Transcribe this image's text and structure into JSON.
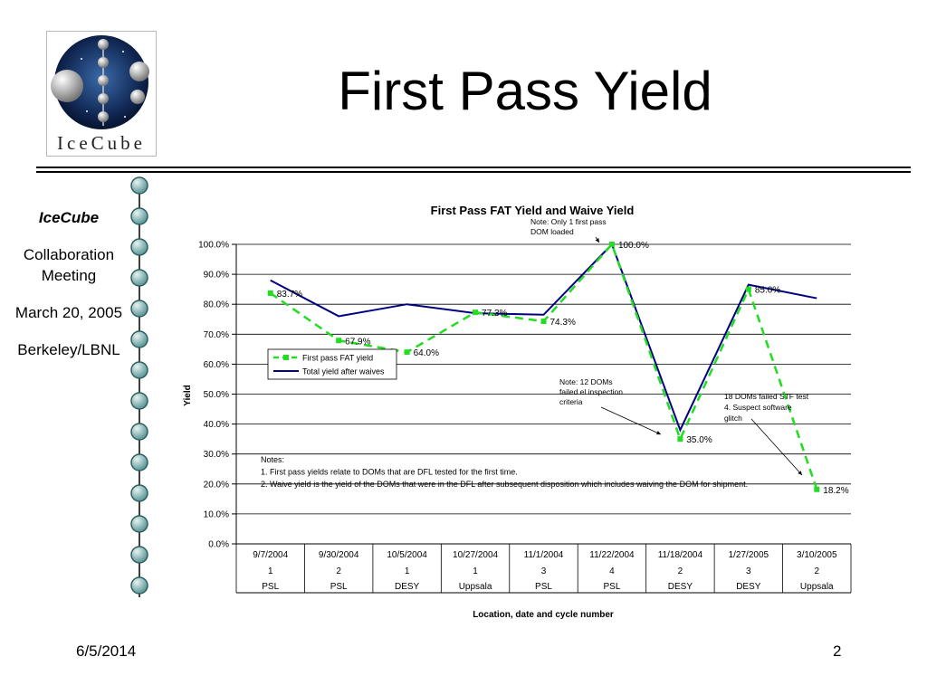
{
  "slide": {
    "title": "First Pass Yield",
    "logo_text": "IceCube",
    "sidebar": {
      "org": "IceCube",
      "event": "Collaboration Meeting",
      "date": "March 20, 2005",
      "location": "Berkeley/LBNL"
    },
    "footer_date": "6/5/2014",
    "slide_number": "2"
  },
  "chart_data": {
    "type": "line",
    "title": "First Pass FAT Yield and Waive Yield",
    "ylabel": "Yield",
    "xlabel": "Location, date and cycle number",
    "ylim": [
      0,
      100
    ],
    "yticks": [
      "0.0%",
      "10.0%",
      "20.0%",
      "30.0%",
      "40.0%",
      "50.0%",
      "60.0%",
      "70.0%",
      "80.0%",
      "90.0%",
      "100.0%"
    ],
    "grid": true,
    "legend_position": "center-left",
    "categories": [
      {
        "date": "9/7/2004",
        "cycle": "1",
        "location": "PSL"
      },
      {
        "date": "9/30/2004",
        "cycle": "2",
        "location": "PSL"
      },
      {
        "date": "10/5/2004",
        "cycle": "1",
        "location": "DESY"
      },
      {
        "date": "10/27/2004",
        "cycle": "1",
        "location": "Uppsala"
      },
      {
        "date": "11/1/2004",
        "cycle": "3",
        "location": "PSL"
      },
      {
        "date": "11/22/2004",
        "cycle": "4",
        "location": "PSL"
      },
      {
        "date": "11/18/2004",
        "cycle": "2",
        "location": "DESY"
      },
      {
        "date": "1/27/2005",
        "cycle": "3",
        "location": "DESY"
      },
      {
        "date": "3/10/2005",
        "cycle": "2",
        "location": "Uppsala"
      }
    ],
    "series": [
      {
        "name": "First pass FAT yield",
        "color": "#22dd22",
        "values": [
          83.7,
          67.9,
          64.0,
          77.3,
          74.3,
          100.0,
          35.0,
          85.0,
          18.2
        ],
        "labels": [
          "83.7%",
          "67.9%",
          "64.0%",
          "77.3%",
          "74.3%",
          "100.0%",
          "35.0%",
          "85.0%",
          "18.2%"
        ]
      },
      {
        "name": "Total yield after waives",
        "color": "#000080",
        "values": [
          88,
          76,
          80,
          77,
          76.5,
          100,
          38,
          86.5,
          82
        ]
      }
    ],
    "annotations": [
      {
        "lines": [
          "Note: Only 1 first pass",
          "DOM loaded"
        ]
      },
      {
        "lines": [
          "Note: 12 DOMs",
          "failed el inspection",
          "criteria"
        ]
      },
      {
        "lines": [
          "18 DOMs failed STF test",
          "4. Suspect software",
          "glitch"
        ]
      }
    ],
    "notes": [
      "Notes:",
      "1. First pass yields relate to DOMs that are DFL tested for the first time.",
      "2. Waive yield is the yield of the DOMs that were in the DFL after subsequent disposition which includes waiving the DOM for shipment."
    ]
  }
}
